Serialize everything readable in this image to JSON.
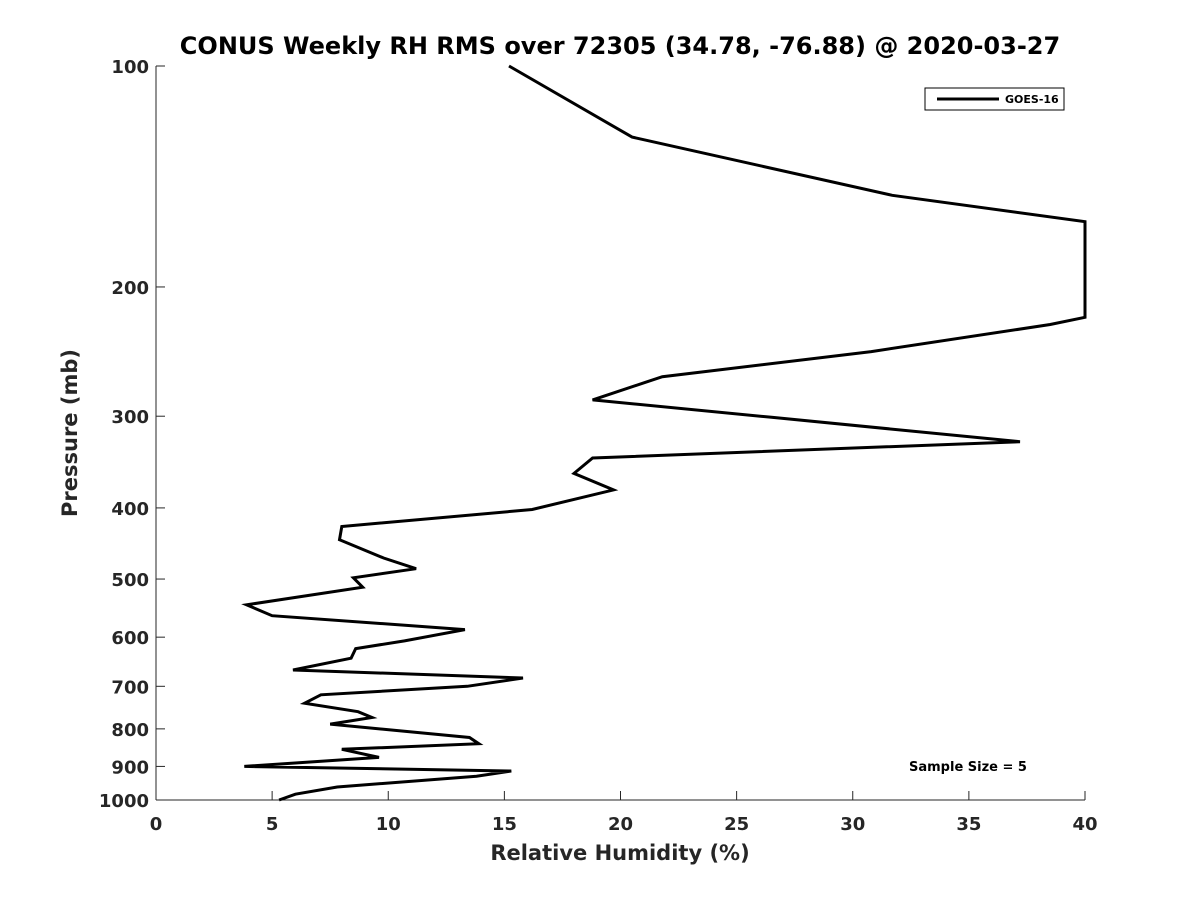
{
  "chart_data": {
    "type": "line",
    "title": "CONUS Weekly RH RMS over 72305 (34.78, -76.88) @ 2020-03-27",
    "xlabel": "Relative Humidity (%)",
    "ylabel": "Pressure (mb)",
    "xlim": [
      0,
      40
    ],
    "ylim": [
      100,
      1000
    ],
    "y_scale": "log",
    "y_reversed": true,
    "grid": false,
    "legend_position": "top-right",
    "x_ticks": [
      "0",
      "5",
      "10",
      "15",
      "20",
      "25",
      "30",
      "35",
      "40"
    ],
    "y_ticks": [
      "100",
      "200",
      "300",
      "400",
      "500",
      "600",
      "700",
      "800",
      "900",
      "1000"
    ],
    "annotation": "Sample Size = 5",
    "series": [
      {
        "name": "GOES-16",
        "color": "#000000",
        "points": [
          [
            15.2,
            100
          ],
          [
            20.5,
            125
          ],
          [
            31.7,
            150
          ],
          [
            40.0,
            163
          ],
          [
            40.0,
            220
          ],
          [
            38.5,
            225
          ],
          [
            30.8,
            245
          ],
          [
            21.8,
            265
          ],
          [
            18.8,
            285
          ],
          [
            26.5,
            301
          ],
          [
            37.2,
            325
          ],
          [
            18.8,
            342
          ],
          [
            18.0,
            359
          ],
          [
            19.7,
            378
          ],
          [
            16.2,
            402
          ],
          [
            8.0,
            424
          ],
          [
            7.9,
            442
          ],
          [
            9.8,
            468
          ],
          [
            11.2,
            484
          ],
          [
            8.5,
            498
          ],
          [
            8.9,
            513
          ],
          [
            3.9,
            542
          ],
          [
            5.0,
            561
          ],
          [
            13.3,
            586
          ],
          [
            10.7,
            607
          ],
          [
            8.6,
            622
          ],
          [
            8.4,
            641
          ],
          [
            5.9,
            665
          ],
          [
            15.8,
            682
          ],
          [
            13.4,
            700
          ],
          [
            7.1,
            719
          ],
          [
            6.4,
            738
          ],
          [
            8.7,
            758
          ],
          [
            9.3,
            772
          ],
          [
            7.5,
            788
          ],
          [
            13.5,
            822
          ],
          [
            13.9,
            838
          ],
          [
            8.0,
            853
          ],
          [
            9.6,
            875
          ],
          [
            3.8,
            900
          ],
          [
            15.3,
            913
          ],
          [
            13.8,
            928
          ],
          [
            7.8,
            960
          ],
          [
            6.0,
            982
          ],
          [
            5.3,
            1000
          ]
        ]
      }
    ]
  }
}
